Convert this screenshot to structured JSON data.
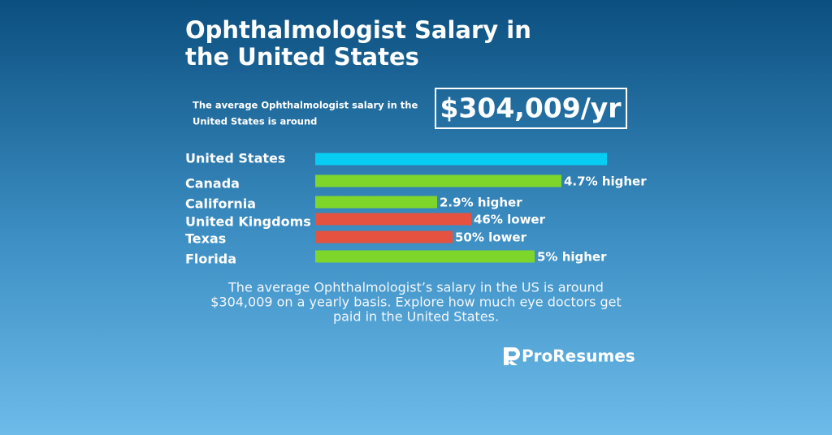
{
  "header": {
    "title_lines": [
      "Ophthalmologist Salary in",
      "the United States"
    ],
    "intro_lines": [
      "The average Ophthalmologist salary in the",
      "United States is around"
    ],
    "highlight": "$304,009/yr"
  },
  "rows": [
    {
      "label": "United States"
    },
    {
      "label": "Canada",
      "note": "4.7% higher"
    },
    {
      "label": "California",
      "note": "2.9% higher"
    },
    {
      "label": "United Kingdoms",
      "note": "46% lower"
    },
    {
      "label": "Texas",
      "note": "50% lower"
    },
    {
      "label": "Florida",
      "note": "5% higher"
    }
  ],
  "footer": {
    "lines": [
      "The average Ophthalmologist’s salary in the US is around",
      "$304,009 on a yearly basis. Explore how much eye doctors get",
      "paid in the United States."
    ],
    "brand": "ProResumes"
  }
}
